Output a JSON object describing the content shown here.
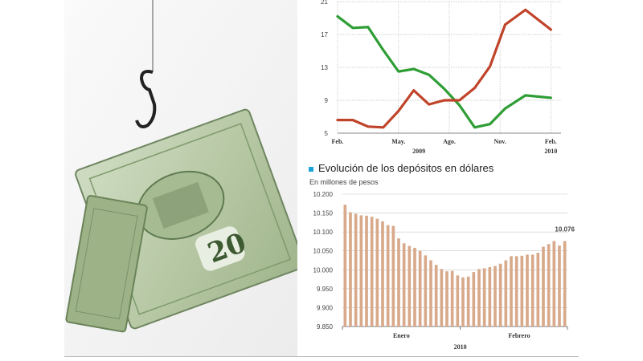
{
  "chart_data": [
    {
      "type": "line",
      "title": "",
      "ylim": [
        5,
        21
      ],
      "yticks": [
        "21",
        "17",
        "13",
        "9",
        "5"
      ],
      "yticks_values": [
        21,
        17,
        13,
        9,
        5
      ],
      "x_tick_labels": [
        "Feb.",
        "May.",
        "Ago.",
        "Nov.",
        "Feb."
      ],
      "x_tick_index": [
        0,
        6,
        11,
        16,
        21
      ],
      "year_labels": [
        {
          "text": "2009",
          "index": 8
        },
        {
          "text": "2010",
          "index": 21
        }
      ],
      "series": [
        {
          "color": "#2e9e35",
          "values": [
            19.2,
            17.8,
            17.9,
            15.1,
            12.5,
            12.8,
            12.1,
            10.4,
            8.4,
            5.7,
            6.1,
            8.0,
            9.6,
            9.3
          ]
        },
        {
          "color": "#c0442a",
          "values": [
            6.6,
            6.6,
            5.8,
            5.7,
            7.7,
            10.2,
            8.5,
            9.0,
            9.0,
            10.5,
            13.1,
            18.2,
            20.0,
            17.6
          ]
        }
      ],
      "point_index": [
        0,
        1.5,
        3,
        4.5,
        6,
        7.5,
        9,
        10.5,
        12,
        13.5,
        15,
        16.5,
        18.5,
        21
      ]
    },
    {
      "type": "bar",
      "title": "Evolución de los depósitos en dólares",
      "subtitle": "En millones de pesos",
      "ylim": [
        9850,
        10200
      ],
      "yticks": [
        "10.200",
        "10.150",
        "10.100",
        "10.050",
        "10.000",
        "9.950",
        "9.900",
        "9.850"
      ],
      "yticks_values": [
        10200,
        10150,
        10100,
        10050,
        10000,
        9950,
        9900,
        9850
      ],
      "x_labels": [
        {
          "text": "Enero",
          "index": 11
        },
        {
          "text": "Febrero",
          "index": 33
        }
      ],
      "year_label": {
        "text": "2010",
        "index": 22
      },
      "last_value_label": "10.076",
      "bar_color": "#d8a98a",
      "values": [
        10172,
        10152,
        10148,
        10144,
        10143,
        10140,
        10135,
        10128,
        10118,
        10116,
        10083,
        10070,
        10063,
        10058,
        10050,
        10038,
        10025,
        10013,
        10002,
        9996,
        9997,
        9985,
        9980,
        9982,
        9994,
        10002,
        10004,
        10007,
        10010,
        10016,
        10025,
        10036,
        10036,
        10037,
        10040,
        10040,
        10045,
        10061,
        10068,
        10076,
        10064,
        10076
      ]
    }
  ]
}
